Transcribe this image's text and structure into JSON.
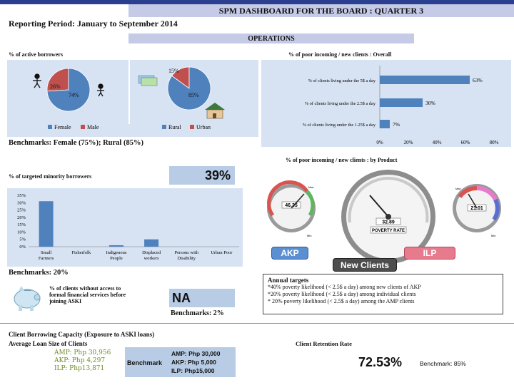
{
  "header": {
    "title": "SPM DASHBOARD FOR THE BOARD : QUARTER 3",
    "reporting_period": "Reporting Period: January to September 2014",
    "section": "OPERATIONS"
  },
  "active_borrowers": {
    "title": "% of active borrowers",
    "benchmark": "Benchmarks:  Female (75%); Rural (85%)"
  },
  "poor_overall": {
    "title": "% of  poor incoming / new clients : Overall"
  },
  "poor_by_product": {
    "title": "% of  poor incoming / new clients : by Product",
    "gauges": [
      {
        "label": "AKP",
        "readout": "46.35",
        "color": "#5b8fd1"
      },
      {
        "label": "New Clients",
        "readout": "32.89",
        "sub": "POVERTY RATE",
        "color": "#4d4d4d"
      },
      {
        "label": "ILP",
        "readout": "21.01",
        "color": "#e87a8e"
      }
    ],
    "gauge_tick_labels": [
      "Max",
      "Min",
      "Max",
      "Min"
    ]
  },
  "minority": {
    "title": "% of targeted minority borrowers",
    "value": "39%",
    "benchmark": "Benchmarks: 20%"
  },
  "no_access": {
    "text": [
      "% of clients without access to",
      "formal financial services before",
      "joining ASKI"
    ],
    "value": "NA",
    "benchmark": "Benchmarks: 2%"
  },
  "annual_targets": {
    "title": "Annual targets",
    "lines": [
      "*40% poverty likelihood (< 2.5$ a day) among new clients of AKP",
      "*20% poverty likelihood (< 2.5$ a day) among individual clients",
      "* 20% poverty likelihood (< 2.5$ a day) among the AMP clients"
    ]
  },
  "borrowing_capacity": {
    "title": "Client Borrowing Capacity (Exposure to ASKI loans)",
    "subtitle": "Average Loan Size of Clients",
    "items": [
      "AMP: Php 30,956",
      "AKP: Php 4,297",
      "ILP:  Php13,871"
    ],
    "benchmark_label": "Benchmark",
    "benchmark_items": [
      "AMP: Php 30,000",
      "AKP: Php 5,000",
      "ILP:  Php15,000"
    ]
  },
  "retention": {
    "title": "Client Retention Rate",
    "value": "72.53%",
    "benchmark": "Benchmark: 85%"
  },
  "colors": {
    "blue": "#4f81bd",
    "red": "#c0504d",
    "panel": "#d7e3f3",
    "accent": "#b8cce6"
  },
  "chart_data": [
    {
      "type": "pie",
      "labels": [
        "Female",
        "Male"
      ],
      "values": [
        74,
        26
      ],
      "slice_labels": [
        "74%",
        "26%"
      ],
      "colors": [
        "#4f81bd",
        "#c0504d"
      ]
    },
    {
      "type": "pie",
      "labels": [
        "Rural",
        "Urban"
      ],
      "values": [
        85,
        15
      ],
      "slice_labels": [
        "85%",
        "15%"
      ],
      "colors": [
        "#4f81bd",
        "#c0504d"
      ]
    },
    {
      "type": "bar",
      "orientation": "horizontal",
      "categories": [
        "% of clients living under the 5$ a day",
        "% of clients living under the 2.5$ a day",
        "% of clients living under the 1.25$ a day"
      ],
      "values": [
        63,
        30,
        7
      ],
      "value_labels": [
        "63%",
        "30%",
        "7%"
      ],
      "xlim": [
        0,
        80
      ],
      "x_ticks": [
        "0%",
        "20%",
        "40%",
        "60%",
        "80%"
      ]
    },
    {
      "type": "bar",
      "categories": [
        "Small Farmers",
        "Fisherfolk",
        "Indigenous People",
        "Displaced workers",
        "Persons with Disability",
        "Urban Poor"
      ],
      "tick_lines": [
        [
          "Small",
          "Farmers"
        ],
        [
          "Fisherfolk"
        ],
        [
          "Indigenous",
          "People"
        ],
        [
          "Displaced",
          "workers"
        ],
        [
          "Persons with",
          "Disability"
        ],
        [
          "Urban Poor"
        ]
      ],
      "values": [
        31,
        0,
        1,
        5,
        0,
        0
      ],
      "ylim": [
        0,
        35
      ],
      "y_ticks": [
        "0%",
        "5%",
        "10%",
        "15%",
        "20%",
        "25%",
        "30%",
        "35%"
      ]
    }
  ]
}
